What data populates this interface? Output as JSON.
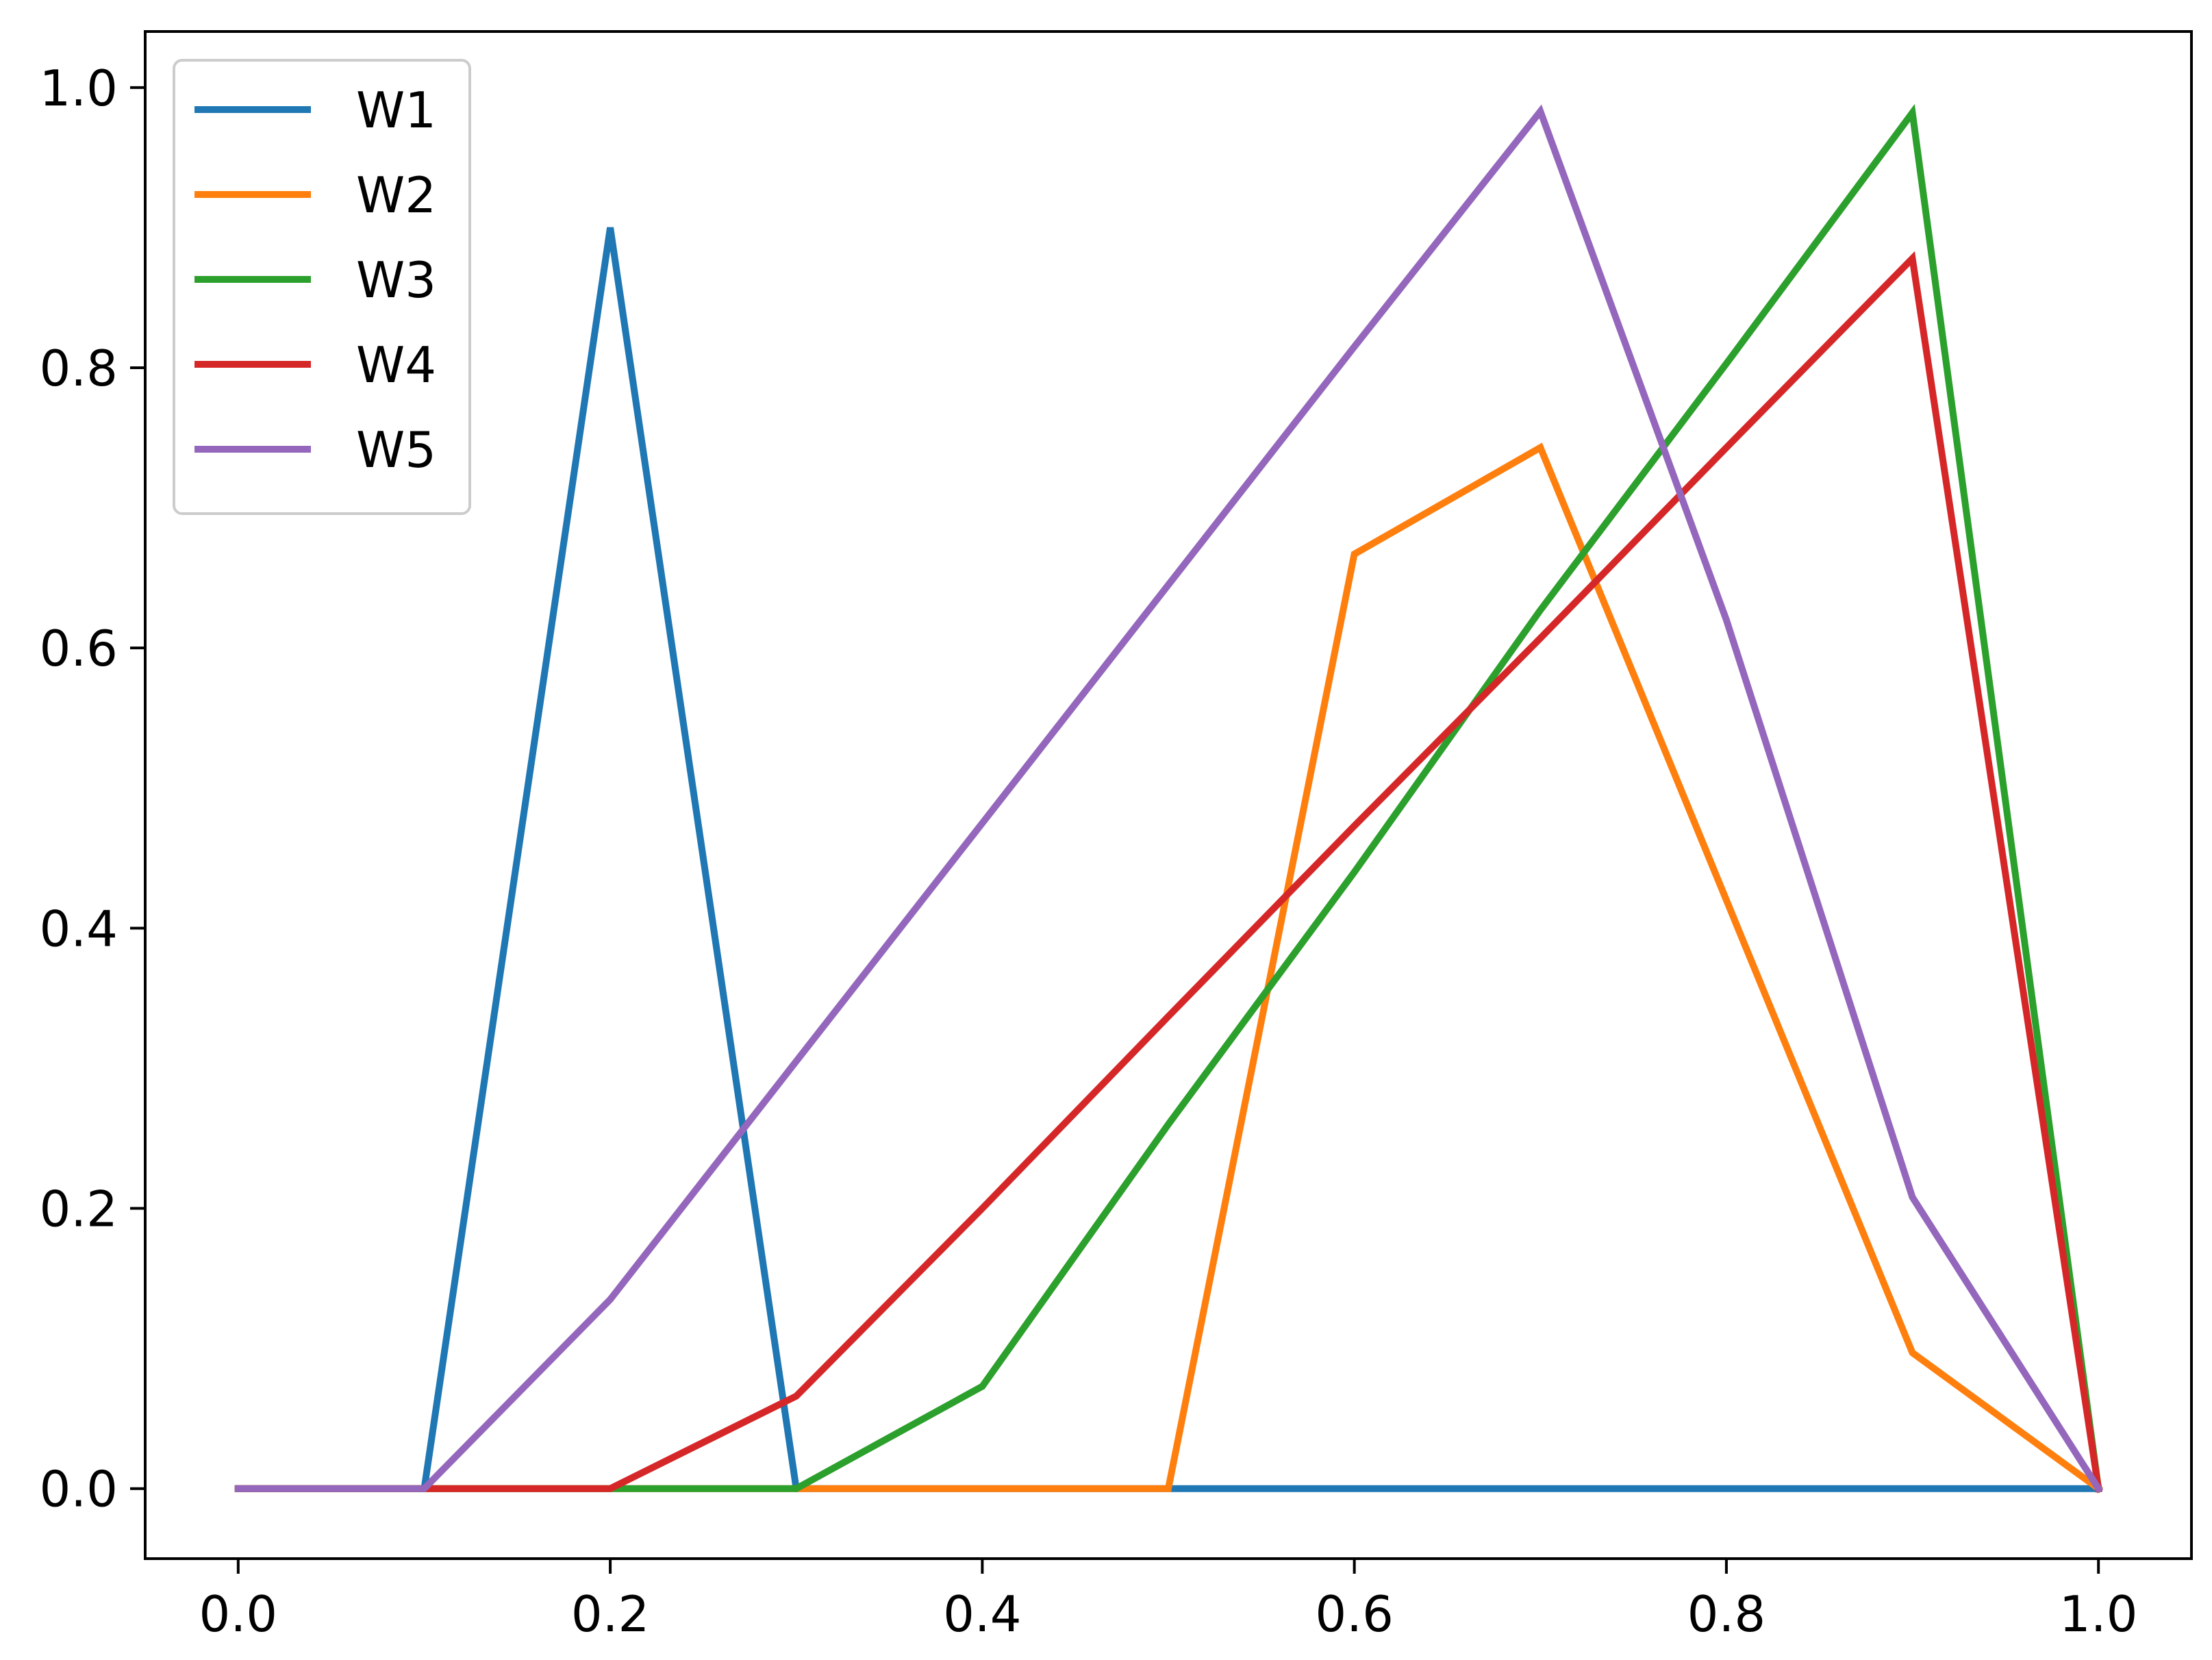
{
  "chart_data": {
    "type": "line",
    "title": "",
    "xlabel": "",
    "ylabel": "",
    "xlim": [
      -0.05,
      1.05
    ],
    "ylim": [
      -0.05,
      1.04
    ],
    "x_ticks": [
      {
        "value": 0.0,
        "label": "0.0"
      },
      {
        "value": 0.2,
        "label": "0.2"
      },
      {
        "value": 0.4,
        "label": "0.4"
      },
      {
        "value": 0.6,
        "label": "0.6"
      },
      {
        "value": 0.8,
        "label": "0.8"
      },
      {
        "value": 1.0,
        "label": "1.0"
      }
    ],
    "y_ticks": [
      {
        "value": 0.0,
        "label": "0.0"
      },
      {
        "value": 0.2,
        "label": "0.2"
      },
      {
        "value": 0.4,
        "label": "0.4"
      },
      {
        "value": 0.6,
        "label": "0.6"
      },
      {
        "value": 0.8,
        "label": "0.8"
      },
      {
        "value": 1.0,
        "label": "1.0"
      }
    ],
    "grid": false,
    "legend_position": "upper-left",
    "x": [
      0.0,
      0.1,
      0.2,
      0.3,
      0.4,
      0.5,
      0.6,
      0.7,
      0.8,
      0.9,
      1.0
    ],
    "series": [
      {
        "name": "W1",
        "color": "#1f77b4",
        "values": [
          0.0,
          0.0,
          0.9,
          0.0,
          0.0,
          0.0,
          0.0,
          0.0,
          0.0,
          0.0,
          0.0
        ]
      },
      {
        "name": "W2",
        "color": "#ff7f0e",
        "values": [
          0.0,
          0.0,
          0.0,
          0.0,
          0.0,
          0.0,
          0.667,
          0.743,
          0.42,
          0.097,
          0.0
        ]
      },
      {
        "name": "W3",
        "color": "#2ca02c",
        "values": [
          0.0,
          0.0,
          0.0,
          0.0,
          0.073,
          0.26,
          0.44,
          0.627,
          0.803,
          0.982,
          0.0
        ]
      },
      {
        "name": "W4",
        "color": "#d62728",
        "values": [
          0.0,
          0.0,
          0.0,
          0.066,
          0.2,
          0.337,
          0.473,
          0.607,
          0.743,
          0.878,
          0.0
        ]
      },
      {
        "name": "W5",
        "color": "#9467bd",
        "values": [
          0.0,
          0.0,
          0.135,
          0.305,
          0.475,
          0.645,
          0.815,
          0.983,
          0.62,
          0.208,
          0.0
        ]
      }
    ]
  }
}
